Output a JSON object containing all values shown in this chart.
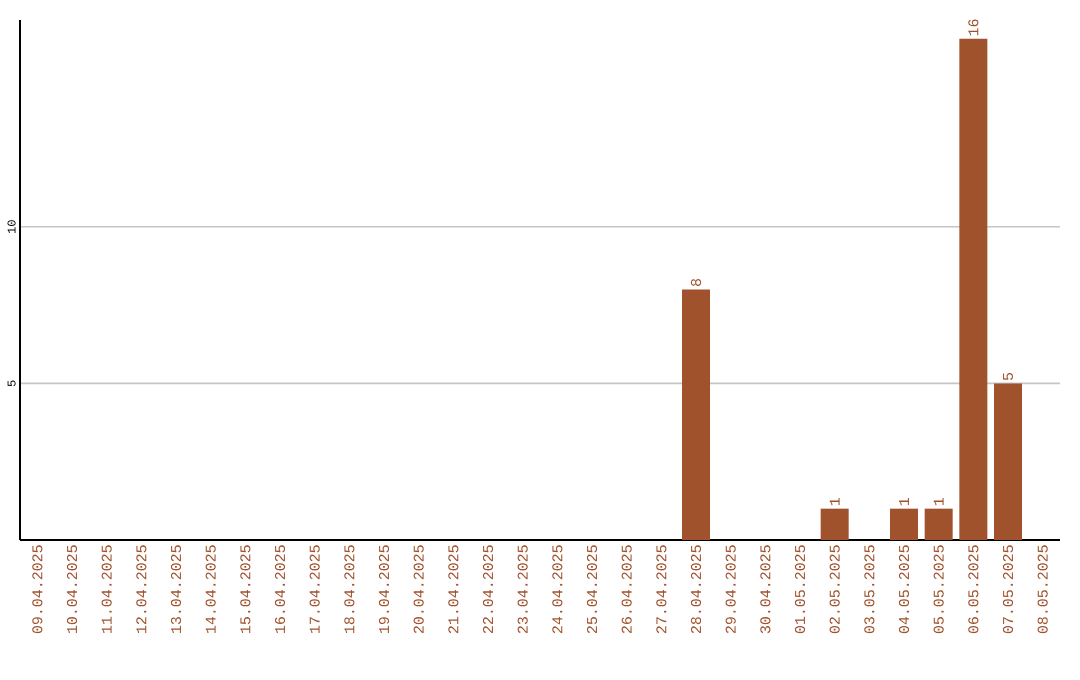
{
  "chart_data": {
    "type": "bar",
    "categories": [
      "09.04.2025",
      "10.04.2025",
      "11.04.2025",
      "12.04.2025",
      "13.04.2025",
      "14.04.2025",
      "15.04.2025",
      "16.04.2025",
      "17.04.2025",
      "18.04.2025",
      "19.04.2025",
      "20.04.2025",
      "21.04.2025",
      "22.04.2025",
      "23.04.2025",
      "24.04.2025",
      "25.04.2025",
      "26.04.2025",
      "27.04.2025",
      "28.04.2025",
      "29.04.2025",
      "30.04.2025",
      "01.05.2025",
      "02.05.2025",
      "03.05.2025",
      "04.05.2025",
      "05.05.2025",
      "06.05.2025",
      "07.05.2025",
      "08.05.2025"
    ],
    "values": [
      0,
      0,
      0,
      0,
      0,
      0,
      0,
      0,
      0,
      0,
      0,
      0,
      0,
      0,
      0,
      0,
      0,
      0,
      0,
      8,
      0,
      0,
      0,
      1,
      0,
      1,
      1,
      16,
      5,
      0
    ],
    "value_labels": [
      null,
      null,
      null,
      null,
      null,
      null,
      null,
      null,
      null,
      null,
      null,
      null,
      null,
      null,
      null,
      null,
      null,
      null,
      null,
      "8",
      null,
      null,
      null,
      "1",
      null,
      "1",
      "1",
      "16",
      "5",
      null
    ],
    "color": "#a0522d",
    "ylim": [
      0,
      16.6
    ],
    "yticks": [
      5,
      10
    ],
    "grid": "y"
  }
}
